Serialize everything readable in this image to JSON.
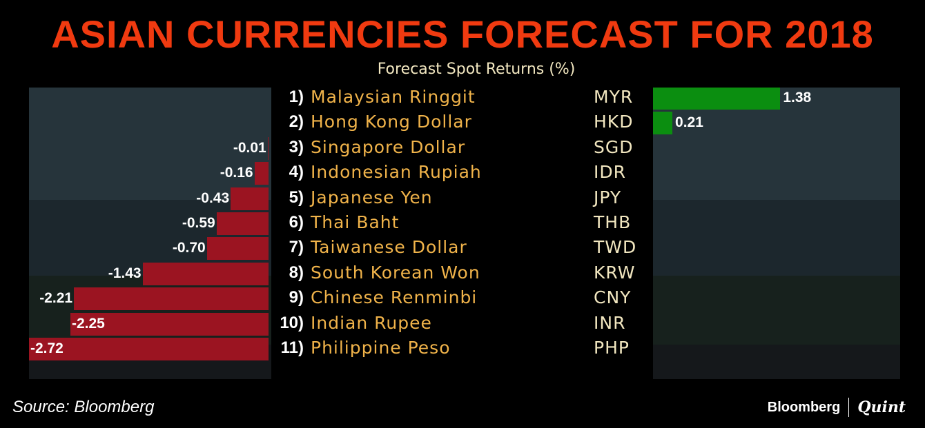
{
  "title": "ASIAN CURRENCIES FORECAST FOR 2018",
  "subtitle": "Forecast Spot Returns (%)",
  "source": "Source: Bloomberg",
  "brand": {
    "left": "Bloomberg",
    "right": "Quint"
  },
  "colors": {
    "title": "#f03a10",
    "negative_bar": "#9b1421",
    "positive_bar": "#0b8e10",
    "currency_name": "#f0b34a",
    "currency_code": "#f2e7c0"
  },
  "chart_data": {
    "type": "bar",
    "orientation": "horizontal",
    "title": "Forecast Spot Returns (%)",
    "categories": [
      "Malaysian Ringgit",
      "Hong Kong Dollar",
      "Singapore Dollar",
      "Indonesian Rupiah",
      "Japanese Yen",
      "Thai Baht",
      "Taiwanese Dollar",
      "South Korean Won",
      "Chinese Renminbi",
      "Indian Rupee",
      "Philippine Peso"
    ],
    "codes": [
      "MYR",
      "HKD",
      "SGD",
      "IDR",
      "JPY",
      "THB",
      "TWD",
      "KRW",
      "CNY",
      "INR",
      "PHP"
    ],
    "ranks": [
      "1)",
      "2)",
      "3)",
      "4)",
      "5)",
      "6)",
      "7)",
      "8)",
      "9)",
      "10)",
      "11)"
    ],
    "values": [
      1.38,
      0.21,
      -0.01,
      -0.16,
      -0.43,
      -0.59,
      -0.7,
      -1.43,
      -2.21,
      -2.25,
      -2.72
    ],
    "value_labels": [
      "1.38",
      "0.21",
      "-0.01",
      "-0.16",
      "-0.43",
      "-0.59",
      "-0.70",
      "-1.43",
      "-2.21",
      "-2.25",
      "-2.72"
    ],
    "negative_xlim": [
      -2.72,
      0
    ],
    "positive_xlim": [
      0,
      2.68
    ]
  }
}
